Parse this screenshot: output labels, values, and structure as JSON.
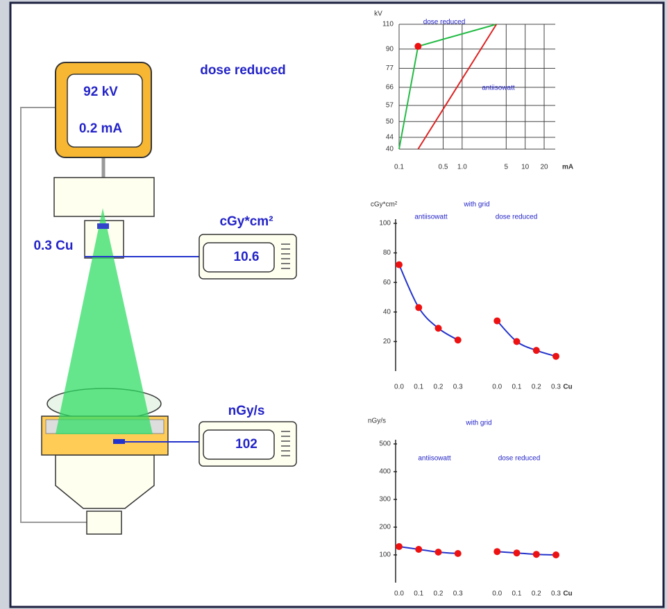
{
  "diagram": {
    "mode": "dose reduced",
    "kv": "92  kV",
    "ma": "0.2 mA",
    "filter": "0.3 Cu",
    "dap_meter": {
      "unit": "cGy*cm²",
      "value": "10.6"
    },
    "dose_rate_meter": {
      "unit": "nGy/s",
      "value": "102"
    }
  },
  "chart_data": [
    {
      "type": "line",
      "y_label": "kV",
      "x_label": "mA",
      "x_scale": "log",
      "y_scale": "log",
      "grid": true,
      "xlim": [
        0.1,
        30
      ],
      "xticks": [
        0.1,
        0.5,
        {
          "value": 1,
          "label": "1.0"
        },
        5,
        10,
        20
      ],
      "ylim": [
        40,
        110
      ],
      "yticks": [
        40,
        44,
        50,
        57,
        66,
        77,
        90,
        110
      ],
      "series": [
        {
          "name": "dose reduced",
          "color": "#22bb44",
          "x": [
            0.1,
            0.2,
            3.5
          ],
          "values": [
            40,
            92,
            110
          ]
        },
        {
          "name": "antiisowatt",
          "color": "#dd2222",
          "x": [
            0.2,
            3.5
          ],
          "values": [
            40,
            110
          ]
        },
        {
          "color": "#ee1111",
          "style": "dot",
          "x": [
            0.2
          ],
          "values": [
            92
          ]
        }
      ]
    },
    {
      "type": "line",
      "y_label": "cGy*cm²",
      "x_label": "Cu",
      "annotation": "with grid",
      "grid": false,
      "categories": [
        "0.0",
        "0.1",
        "0.2",
        "0.3",
        null,
        "0.0",
        "0.1",
        "0.2",
        "0.3"
      ],
      "ylim": [
        0,
        100
      ],
      "yticks": [
        20,
        40,
        60,
        80,
        100
      ],
      "series": [
        {
          "name": "antiisowatt",
          "color": "#2233cc",
          "marker_color": "#ee1111",
          "values": [
            72,
            43,
            29,
            21,
            null,
            null,
            null,
            null,
            null
          ]
        },
        {
          "name": "dose reduced",
          "color": "#2233cc",
          "marker_color": "#ee1111",
          "values": [
            null,
            null,
            null,
            null,
            null,
            34,
            20,
            14,
            10
          ]
        }
      ]
    },
    {
      "type": "line",
      "y_label": "nGy/s",
      "x_label": "Cu",
      "annotation": "with grid",
      "grid": false,
      "categories": [
        "0.0",
        "0.1",
        "0.2",
        "0.3",
        null,
        "0.0",
        "0.1",
        "0.2",
        "0.3"
      ],
      "ylim": [
        0,
        500
      ],
      "yticks": [
        100,
        200,
        300,
        400,
        500
      ],
      "series": [
        {
          "name": "antiisowatt",
          "color": "#2233cc",
          "marker_color": "#ee1111",
          "values": [
            130,
            120,
            110,
            105,
            null,
            null,
            null,
            null,
            null
          ]
        },
        {
          "name": "dose reduced",
          "color": "#2233cc",
          "marker_color": "#ee1111",
          "values": [
            null,
            null,
            null,
            null,
            null,
            112,
            107,
            102,
            100
          ]
        }
      ]
    }
  ]
}
